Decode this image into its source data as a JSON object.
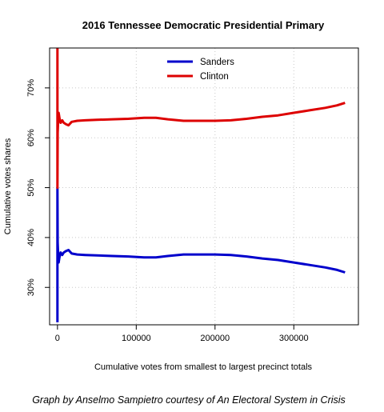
{
  "chart_data": {
    "type": "line",
    "title": "2016 Tennessee Democratic Presidential Primary",
    "xlabel": "Cumulative votes from smallest to largest precinct totals",
    "ylabel": "Cumulative votes shares",
    "credit": "Graph by Anselmo Sampietro courtesy of An Electoral System in Crisis",
    "xlim": [
      -10000,
      382000
    ],
    "ylim": [
      0.225,
      0.78
    ],
    "x_ticks": [
      0,
      100000,
      200000,
      300000
    ],
    "x_tick_labels": [
      "0",
      "100000",
      "200000",
      "300000"
    ],
    "y_ticks": [
      0.3,
      0.4,
      0.5,
      0.6,
      0.7
    ],
    "y_tick_labels": [
      "30%",
      "40%",
      "50%",
      "60%",
      "70%"
    ],
    "grid": true,
    "legend_position": "top-center",
    "series": [
      {
        "name": "Sanders",
        "color": "#0000cc",
        "x": [
          0,
          0,
          300,
          800,
          1500,
          2500,
          4000,
          6000,
          8000,
          11000,
          14000,
          18000,
          25000,
          35000,
          50000,
          70000,
          90000,
          110000,
          125000,
          140000,
          160000,
          180000,
          200000,
          220000,
          240000,
          260000,
          280000,
          300000,
          320000,
          340000,
          355000,
          365000
        ],
        "y": [
          0.23,
          0.5,
          0.39,
          0.37,
          0.35,
          0.36,
          0.37,
          0.365,
          0.37,
          0.373,
          0.375,
          0.368,
          0.366,
          0.365,
          0.364,
          0.363,
          0.362,
          0.36,
          0.36,
          0.363,
          0.366,
          0.366,
          0.366,
          0.365,
          0.362,
          0.358,
          0.355,
          0.35,
          0.345,
          0.34,
          0.335,
          0.33
        ]
      },
      {
        "name": "Clinton",
        "color": "#dd0000",
        "x": [
          0,
          0,
          300,
          800,
          1500,
          2500,
          4000,
          6000,
          8000,
          11000,
          14000,
          18000,
          25000,
          35000,
          50000,
          70000,
          90000,
          110000,
          125000,
          140000,
          160000,
          180000,
          200000,
          220000,
          240000,
          260000,
          280000,
          300000,
          320000,
          340000,
          355000,
          365000
        ],
        "y": [
          0.78,
          0.5,
          0.61,
          0.63,
          0.65,
          0.64,
          0.63,
          0.635,
          0.63,
          0.627,
          0.625,
          0.632,
          0.634,
          0.635,
          0.636,
          0.637,
          0.638,
          0.64,
          0.64,
          0.637,
          0.634,
          0.634,
          0.634,
          0.635,
          0.638,
          0.642,
          0.645,
          0.65,
          0.655,
          0.66,
          0.665,
          0.67
        ]
      }
    ]
  }
}
